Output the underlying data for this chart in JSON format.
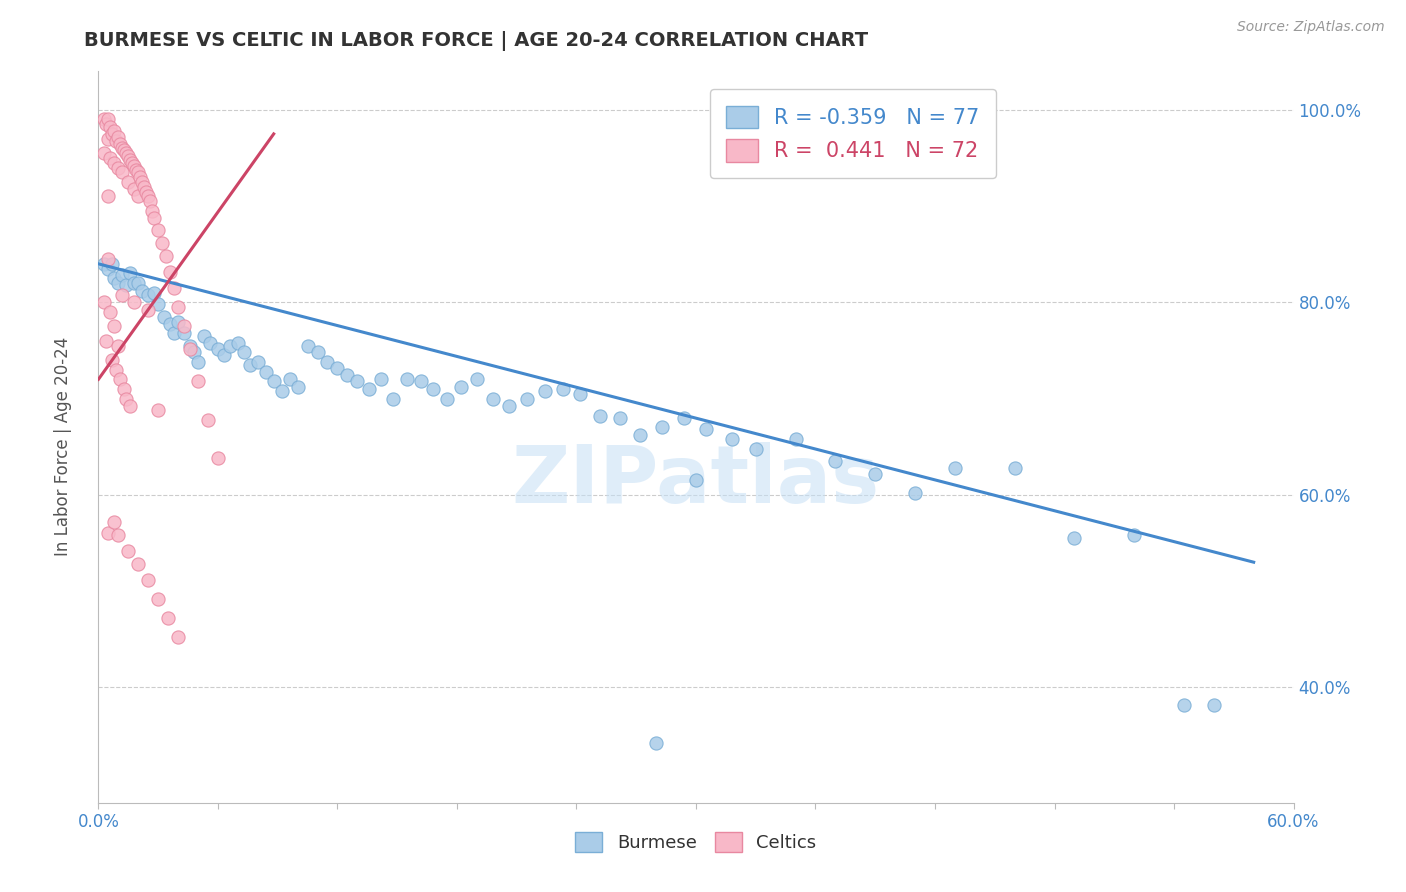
{
  "title": "BURMESE VS CELTIC IN LABOR FORCE | AGE 20-24 CORRELATION CHART",
  "ylabel": "In Labor Force | Age 20-24",
  "source_text": "Source: ZipAtlas.com",
  "xlim": [
    0.0,
    0.6
  ],
  "ylim": [
    0.28,
    1.04
  ],
  "xticks": [
    0.0,
    0.06,
    0.12,
    0.18,
    0.24,
    0.3,
    0.36,
    0.42,
    0.48,
    0.54,
    0.6
  ],
  "xtick_labels": [
    "0.0%",
    "",
    "",
    "",
    "",
    "",
    "",
    "",
    "",
    "",
    "60.0%"
  ],
  "yticks": [
    0.4,
    0.6,
    0.8,
    1.0
  ],
  "ytick_labels": [
    "40.0%",
    "60.0%",
    "80.0%",
    "100.0%"
  ],
  "burmese_color": "#aacce8",
  "burmese_edge": "#7aaed6",
  "celtic_color": "#f8b8c8",
  "celtic_edge": "#e888a0",
  "trend_blue": "#4488cc",
  "trend_pink": "#cc4466",
  "legend_R_blue": "-0.359",
  "legend_N_blue": "77",
  "legend_R_pink": "0.441",
  "legend_N_pink": "72",
  "watermark": "ZIPatlas",
  "background": "#ffffff",
  "grid_color": "#cccccc",
  "blue_trend_x0": 0.0,
  "blue_trend_y0": 0.84,
  "blue_trend_x1": 0.58,
  "blue_trend_y1": 0.53,
  "pink_trend_x0": 0.0,
  "pink_trend_y0": 0.72,
  "pink_trend_x1": 0.088,
  "pink_trend_y1": 0.975,
  "burmese_x": [
    0.003,
    0.005,
    0.007,
    0.008,
    0.01,
    0.012,
    0.014,
    0.016,
    0.018,
    0.02,
    0.022,
    0.025,
    0.028,
    0.03,
    0.033,
    0.036,
    0.038,
    0.04,
    0.043,
    0.046,
    0.048,
    0.05,
    0.053,
    0.056,
    0.06,
    0.063,
    0.066,
    0.07,
    0.073,
    0.076,
    0.08,
    0.084,
    0.088,
    0.092,
    0.096,
    0.1,
    0.105,
    0.11,
    0.115,
    0.12,
    0.125,
    0.13,
    0.136,
    0.142,
    0.148,
    0.155,
    0.162,
    0.168,
    0.175,
    0.182,
    0.19,
    0.198,
    0.206,
    0.215,
    0.224,
    0.233,
    0.242,
    0.252,
    0.262,
    0.272,
    0.283,
    0.294,
    0.305,
    0.318,
    0.33,
    0.35,
    0.37,
    0.39,
    0.41,
    0.43,
    0.46,
    0.49,
    0.52,
    0.545,
    0.56,
    0.3,
    0.28
  ],
  "burmese_y": [
    0.84,
    0.835,
    0.84,
    0.825,
    0.82,
    0.828,
    0.818,
    0.83,
    0.82,
    0.82,
    0.812,
    0.808,
    0.81,
    0.798,
    0.785,
    0.778,
    0.768,
    0.78,
    0.768,
    0.755,
    0.748,
    0.738,
    0.765,
    0.758,
    0.752,
    0.745,
    0.755,
    0.758,
    0.748,
    0.735,
    0.738,
    0.728,
    0.718,
    0.708,
    0.72,
    0.712,
    0.755,
    0.748,
    0.738,
    0.732,
    0.725,
    0.718,
    0.71,
    0.72,
    0.7,
    0.72,
    0.718,
    0.71,
    0.7,
    0.712,
    0.72,
    0.7,
    0.692,
    0.7,
    0.708,
    0.71,
    0.705,
    0.682,
    0.68,
    0.662,
    0.67,
    0.68,
    0.668,
    0.658,
    0.648,
    0.658,
    0.635,
    0.622,
    0.602,
    0.628,
    0.628,
    0.555,
    0.558,
    0.382,
    0.382,
    0.615,
    0.342
  ],
  "celtic_x": [
    0.003,
    0.003,
    0.003,
    0.004,
    0.004,
    0.005,
    0.005,
    0.005,
    0.005,
    0.005,
    0.006,
    0.006,
    0.006,
    0.007,
    0.007,
    0.008,
    0.008,
    0.008,
    0.009,
    0.009,
    0.01,
    0.01,
    0.01,
    0.011,
    0.011,
    0.012,
    0.012,
    0.013,
    0.013,
    0.014,
    0.014,
    0.015,
    0.015,
    0.016,
    0.016,
    0.017,
    0.018,
    0.018,
    0.019,
    0.02,
    0.02,
    0.021,
    0.022,
    0.023,
    0.024,
    0.025,
    0.026,
    0.027,
    0.028,
    0.03,
    0.032,
    0.034,
    0.036,
    0.038,
    0.04,
    0.043,
    0.046,
    0.05,
    0.055,
    0.06,
    0.012,
    0.018,
    0.025,
    0.03,
    0.008,
    0.01,
    0.015,
    0.02,
    0.025,
    0.03,
    0.035,
    0.04
  ],
  "celtic_y": [
    0.99,
    0.955,
    0.8,
    0.985,
    0.76,
    0.99,
    0.97,
    0.91,
    0.845,
    0.56,
    0.982,
    0.95,
    0.79,
    0.975,
    0.74,
    0.978,
    0.945,
    0.775,
    0.968,
    0.73,
    0.972,
    0.94,
    0.755,
    0.965,
    0.72,
    0.96,
    0.935,
    0.958,
    0.71,
    0.955,
    0.7,
    0.952,
    0.925,
    0.948,
    0.692,
    0.945,
    0.942,
    0.918,
    0.938,
    0.935,
    0.91,
    0.93,
    0.925,
    0.92,
    0.915,
    0.91,
    0.905,
    0.895,
    0.888,
    0.875,
    0.862,
    0.848,
    0.832,
    0.815,
    0.795,
    0.775,
    0.752,
    0.718,
    0.678,
    0.638,
    0.808,
    0.8,
    0.792,
    0.688,
    0.572,
    0.558,
    0.542,
    0.528,
    0.512,
    0.492,
    0.472,
    0.452
  ]
}
